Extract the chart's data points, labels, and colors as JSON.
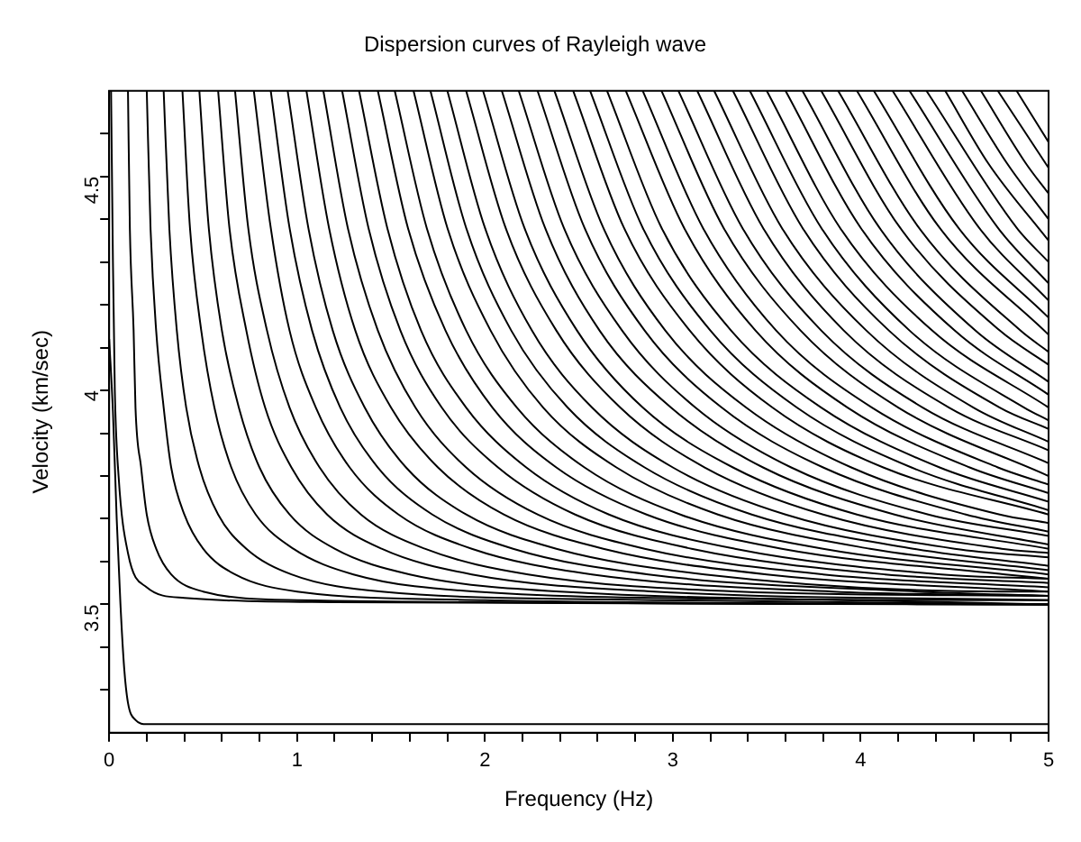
{
  "chart_data": {
    "type": "line",
    "title": "Dispersion curves of Rayleigh wave",
    "xlabel": "Frequency (Hz)",
    "ylabel": "Velocity (km/sec)",
    "color": "#000000",
    "marker": "none",
    "grid": false,
    "legend": false,
    "xlim": [
      0,
      5
    ],
    "ylim": [
      3.2,
      4.7
    ],
    "xticks": [
      0,
      {
        "value": 0.2,
        "label": null
      },
      {
        "value": 0.4,
        "label": null
      },
      {
        "value": 0.6,
        "label": null
      },
      {
        "value": 0.8,
        "label": null
      },
      1,
      {
        "value": 1.2,
        "label": null
      },
      {
        "value": 1.4,
        "label": null
      },
      {
        "value": 1.6,
        "label": null
      },
      {
        "value": 1.8,
        "label": null
      },
      2,
      {
        "value": 2.2,
        "label": null
      },
      {
        "value": 2.4,
        "label": null
      },
      {
        "value": 2.6,
        "label": null
      },
      {
        "value": 2.8,
        "label": null
      },
      3,
      {
        "value": 3.2,
        "label": null
      },
      {
        "value": 3.4,
        "label": null
      },
      {
        "value": 3.6,
        "label": null
      },
      {
        "value": 3.8,
        "label": null
      },
      4,
      {
        "value": 4.2,
        "label": null
      },
      {
        "value": 4.4,
        "label": null
      },
      {
        "value": 4.6,
        "label": null
      },
      {
        "value": 4.8,
        "label": null
      },
      5
    ],
    "yticks": [
      {
        "value": 3.3,
        "label": null
      },
      {
        "value": 3.4,
        "label": null
      },
      3.5,
      {
        "value": 3.6,
        "label": null
      },
      {
        "value": 3.7,
        "label": null
      },
      {
        "value": 3.8,
        "label": null
      },
      {
        "value": 3.9,
        "label": null
      },
      4,
      {
        "value": 4.1,
        "label": null
      },
      {
        "value": 4.2,
        "label": null
      },
      {
        "value": 4.3,
        "label": null
      },
      {
        "value": 4.4,
        "label": null
      },
      4.5,
      {
        "value": 4.6,
        "label": null
      }
    ],
    "series": [
      {
        "x": [
          0,
          0.02,
          0.04,
          0.06,
          0.08,
          0.1,
          0.14,
          0.2,
          5
        ],
        "values": [
          4.12,
          3.95,
          3.7,
          3.5,
          3.35,
          3.27,
          3.23,
          3.22,
          3.22
        ]
      },
      {
        "x": [
          0.01,
          0.02,
          0.03,
          0.05,
          0.1,
          0.2,
          0.4,
          1.2,
          5
        ],
        "values": [
          4.7,
          4.3,
          4.0,
          3.8,
          3.62,
          3.54,
          3.515,
          3.505,
          3.5
        ]
      },
      {
        "x": [
          0.1,
          0.11,
          0.13,
          0.14,
          0.17,
          0.2,
          0.25,
          0.33,
          0.5,
          1.0,
          5
        ],
        "values": [
          4.7,
          4.38,
          4.14,
          3.96,
          3.82,
          3.71,
          3.63,
          3.57,
          3.53,
          3.51,
          3.5
        ]
      },
      {
        "x": [
          0.2,
          0.22,
          0.25,
          0.29,
          0.33,
          0.4,
          0.5,
          0.67,
          1.0,
          2.0,
          5
        ],
        "values": [
          4.7,
          4.38,
          4.14,
          3.96,
          3.82,
          3.71,
          3.63,
          3.57,
          3.53,
          3.51,
          3.5
        ]
      },
      {
        "x": [
          0.29,
          0.32,
          0.36,
          0.41,
          0.48,
          0.58,
          0.73,
          0.97,
          1.45,
          2.9,
          5
        ],
        "values": [
          4.7,
          4.38,
          4.14,
          3.96,
          3.82,
          3.71,
          3.63,
          3.57,
          3.53,
          3.51,
          3.5
        ]
      },
      {
        "x": [
          0.39,
          0.43,
          0.49,
          0.56,
          0.65,
          0.78,
          0.98,
          1.3,
          1.95,
          3.9,
          5
        ],
        "values": [
          4.7,
          4.38,
          4.14,
          3.96,
          3.82,
          3.71,
          3.63,
          3.57,
          3.53,
          3.51,
          3.5
        ]
      },
      {
        "x": [
          0.48,
          0.53,
          0.6,
          0.69,
          0.8,
          0.96,
          1.2,
          1.6,
          2.4,
          4.8,
          5
        ],
        "values": [
          4.7,
          4.38,
          4.14,
          3.96,
          3.82,
          3.71,
          3.63,
          3.57,
          3.53,
          3.51,
          3.51
        ]
      },
      {
        "x": [
          0.58,
          0.64,
          0.73,
          0.83,
          0.97,
          1.16,
          1.45,
          1.93,
          2.9,
          5
        ],
        "values": [
          4.7,
          4.38,
          4.14,
          3.96,
          3.82,
          3.71,
          3.63,
          3.57,
          3.53,
          3.51
        ]
      },
      {
        "x": [
          0.67,
          0.74,
          0.84,
          0.96,
          1.12,
          1.34,
          1.68,
          2.23,
          3.35,
          5
        ],
        "values": [
          4.7,
          4.38,
          4.14,
          3.96,
          3.82,
          3.71,
          3.63,
          3.57,
          3.53,
          3.52
        ]
      },
      {
        "x": [
          0.77,
          0.86,
          0.96,
          1.1,
          1.28,
          1.54,
          1.93,
          2.57,
          3.85,
          5
        ],
        "values": [
          4.7,
          4.38,
          4.14,
          3.96,
          3.82,
          3.71,
          3.63,
          3.57,
          3.53,
          3.52
        ]
      },
      {
        "x": [
          0.86,
          0.96,
          1.08,
          1.23,
          1.43,
          1.72,
          2.15,
          2.87,
          4.3,
          5
        ],
        "values": [
          4.7,
          4.38,
          4.14,
          3.96,
          3.82,
          3.71,
          3.63,
          3.57,
          3.53,
          3.52
        ]
      },
      {
        "x": [
          0.95,
          1.06,
          1.19,
          1.36,
          1.58,
          1.9,
          2.38,
          3.17,
          4.75,
          5
        ],
        "values": [
          4.7,
          4.38,
          4.14,
          3.96,
          3.82,
          3.71,
          3.63,
          3.57,
          3.53,
          3.53
        ]
      },
      {
        "x": [
          1.05,
          1.17,
          1.31,
          1.5,
          1.75,
          2.1,
          2.63,
          3.5,
          5
        ],
        "values": [
          4.7,
          4.38,
          4.14,
          3.96,
          3.82,
          3.71,
          3.63,
          3.57,
          3.53
        ]
      },
      {
        "x": [
          1.14,
          1.27,
          1.43,
          1.63,
          1.9,
          2.28,
          2.85,
          3.8,
          5
        ],
        "values": [
          4.7,
          4.38,
          4.14,
          3.96,
          3.82,
          3.71,
          3.63,
          3.57,
          3.54
        ]
      },
      {
        "x": [
          1.24,
          1.38,
          1.55,
          1.77,
          2.07,
          2.48,
          3.1,
          4.13,
          5
        ],
        "values": [
          4.7,
          4.38,
          4.14,
          3.96,
          3.82,
          3.71,
          3.63,
          3.57,
          3.55
        ]
      },
      {
        "x": [
          1.33,
          1.48,
          1.66,
          1.9,
          2.22,
          2.66,
          3.33,
          4.43,
          5
        ],
        "values": [
          4.7,
          4.38,
          4.14,
          3.96,
          3.82,
          3.71,
          3.63,
          3.57,
          3.56
        ]
      },
      {
        "x": [
          1.43,
          1.59,
          1.79,
          2.04,
          2.38,
          2.86,
          3.58,
          4.77,
          5
        ],
        "values": [
          4.7,
          4.38,
          4.14,
          3.96,
          3.82,
          3.71,
          3.63,
          3.57,
          3.56
        ]
      },
      {
        "x": [
          1.52,
          1.69,
          1.9,
          2.17,
          2.53,
          3.04,
          3.8,
          5
        ],
        "values": [
          4.7,
          4.38,
          4.14,
          3.96,
          3.82,
          3.71,
          3.63,
          3.57
        ]
      },
      {
        "x": [
          1.62,
          1.8,
          2.03,
          2.31,
          2.7,
          3.24,
          4.05,
          5
        ],
        "values": [
          4.7,
          4.38,
          4.14,
          3.96,
          3.82,
          3.71,
          3.63,
          3.58
        ]
      },
      {
        "x": [
          1.71,
          1.9,
          2.14,
          2.44,
          2.85,
          3.42,
          4.28,
          5
        ],
        "values": [
          4.7,
          4.38,
          4.14,
          3.96,
          3.82,
          3.71,
          3.63,
          3.59
        ]
      },
      {
        "x": [
          1.8,
          2.0,
          2.25,
          2.57,
          3.0,
          3.6,
          4.5,
          5
        ],
        "values": [
          4.7,
          4.38,
          4.14,
          3.96,
          3.82,
          3.71,
          3.63,
          3.61
        ]
      },
      {
        "x": [
          1.9,
          2.11,
          2.38,
          2.72,
          3.17,
          3.8,
          4.75,
          5
        ],
        "values": [
          4.7,
          4.38,
          4.14,
          3.96,
          3.82,
          3.71,
          3.63,
          3.62
        ]
      },
      {
        "x": [
          1.99,
          2.21,
          2.49,
          2.84,
          3.32,
          3.98,
          5
        ],
        "values": [
          4.7,
          4.38,
          4.14,
          3.96,
          3.82,
          3.71,
          3.63
        ]
      },
      {
        "x": [
          2.09,
          2.32,
          2.61,
          2.99,
          3.48,
          4.18,
          5
        ],
        "values": [
          4.7,
          4.38,
          4.14,
          3.96,
          3.82,
          3.71,
          3.64
        ]
      },
      {
        "x": [
          2.18,
          2.42,
          2.73,
          3.12,
          3.63,
          4.36,
          5
        ],
        "values": [
          4.7,
          4.38,
          4.14,
          3.96,
          3.82,
          3.71,
          3.66
        ]
      },
      {
        "x": [
          2.28,
          2.53,
          2.85,
          3.26,
          3.8,
          4.56,
          5
        ],
        "values": [
          4.7,
          4.38,
          4.14,
          3.96,
          3.82,
          3.71,
          3.67
        ]
      },
      {
        "x": [
          2.37,
          2.63,
          2.96,
          3.39,
          3.95,
          4.74,
          5
        ],
        "values": [
          4.7,
          4.38,
          4.14,
          3.96,
          3.82,
          3.71,
          3.69
        ]
      },
      {
        "x": [
          2.47,
          2.74,
          3.09,
          3.53,
          4.12,
          5
        ],
        "values": [
          4.7,
          4.38,
          4.14,
          3.96,
          3.82,
          3.71
        ]
      },
      {
        "x": [
          2.56,
          2.84,
          3.2,
          3.66,
          4.27,
          5
        ],
        "values": [
          4.7,
          4.38,
          4.14,
          3.96,
          3.82,
          3.72
        ]
      },
      {
        "x": [
          2.65,
          2.94,
          3.31,
          3.79,
          4.42,
          5
        ],
        "values": [
          4.7,
          4.38,
          4.14,
          3.96,
          3.82,
          3.74
        ]
      },
      {
        "x": [
          2.75,
          3.06,
          3.44,
          3.93,
          4.58,
          5
        ],
        "values": [
          4.7,
          4.38,
          4.14,
          3.96,
          3.82,
          3.76
        ]
      },
      {
        "x": [
          2.84,
          3.16,
          3.55,
          4.06,
          4.73,
          5
        ],
        "values": [
          4.7,
          4.38,
          4.14,
          3.96,
          3.82,
          3.78
        ]
      },
      {
        "x": [
          2.94,
          3.27,
          3.68,
          4.2,
          5
        ],
        "values": [
          4.7,
          4.38,
          4.14,
          3.96,
          3.8
        ]
      },
      {
        "x": [
          3.03,
          3.37,
          3.79,
          4.33,
          5
        ],
        "values": [
          4.7,
          4.38,
          4.14,
          3.96,
          3.83
        ]
      },
      {
        "x": [
          3.13,
          3.48,
          3.91,
          4.47,
          5
        ],
        "values": [
          4.7,
          4.38,
          4.14,
          3.96,
          3.86
        ]
      },
      {
        "x": [
          3.22,
          3.58,
          4.03,
          4.6,
          5
        ],
        "values": [
          4.7,
          4.38,
          4.14,
          3.96,
          3.88
        ]
      },
      {
        "x": [
          3.32,
          3.69,
          4.15,
          4.74,
          5
        ],
        "values": [
          4.7,
          4.38,
          4.14,
          3.96,
          3.91
        ]
      },
      {
        "x": [
          3.41,
          3.79,
          4.26,
          4.87,
          5
        ],
        "values": [
          4.7,
          4.38,
          4.14,
          3.96,
          3.93
        ]
      },
      {
        "x": [
          3.5,
          3.89,
          4.38,
          5
        ],
        "values": [
          4.7,
          4.38,
          4.14,
          3.96
        ]
      },
      {
        "x": [
          3.6,
          4.0,
          4.5,
          5
        ],
        "values": [
          4.7,
          4.38,
          4.14,
          3.99
        ]
      },
      {
        "x": [
          3.69,
          4.1,
          4.61,
          5
        ],
        "values": [
          4.7,
          4.38,
          4.14,
          4.02
        ]
      },
      {
        "x": [
          3.79,
          4.21,
          4.74,
          5
        ],
        "values": [
          4.7,
          4.38,
          4.14,
          4.06
        ]
      },
      {
        "x": [
          3.88,
          4.31,
          4.85,
          5
        ],
        "values": [
          4.7,
          4.38,
          4.14,
          4.09
        ]
      },
      {
        "x": [
          3.98,
          4.42,
          5
        ],
        "values": [
          4.7,
          4.38,
          4.13
        ]
      },
      {
        "x": [
          4.07,
          4.52,
          5
        ],
        "values": [
          4.7,
          4.38,
          4.17
        ]
      },
      {
        "x": [
          4.17,
          4.63,
          5
        ],
        "values": [
          4.7,
          4.38,
          4.21
        ]
      },
      {
        "x": [
          4.26,
          4.73,
          5
        ],
        "values": [
          4.7,
          4.38,
          4.25
        ]
      },
      {
        "x": [
          4.35,
          4.83,
          5
        ],
        "values": [
          4.7,
          4.38,
          4.3
        ]
      },
      {
        "x": [
          4.45,
          4.68,
          5
        ],
        "values": [
          4.7,
          4.53,
          4.35
        ]
      },
      {
        "x": [
          4.54,
          4.78,
          5
        ],
        "values": [
          4.7,
          4.53,
          4.4
        ]
      },
      {
        "x": [
          4.64,
          4.88,
          5
        ],
        "values": [
          4.7,
          4.53,
          4.46
        ]
      },
      {
        "x": [
          4.73,
          5
        ],
        "values": [
          4.7,
          4.52
        ]
      },
      {
        "x": [
          4.83,
          5
        ],
        "values": [
          4.7,
          4.58
        ]
      }
    ]
  }
}
